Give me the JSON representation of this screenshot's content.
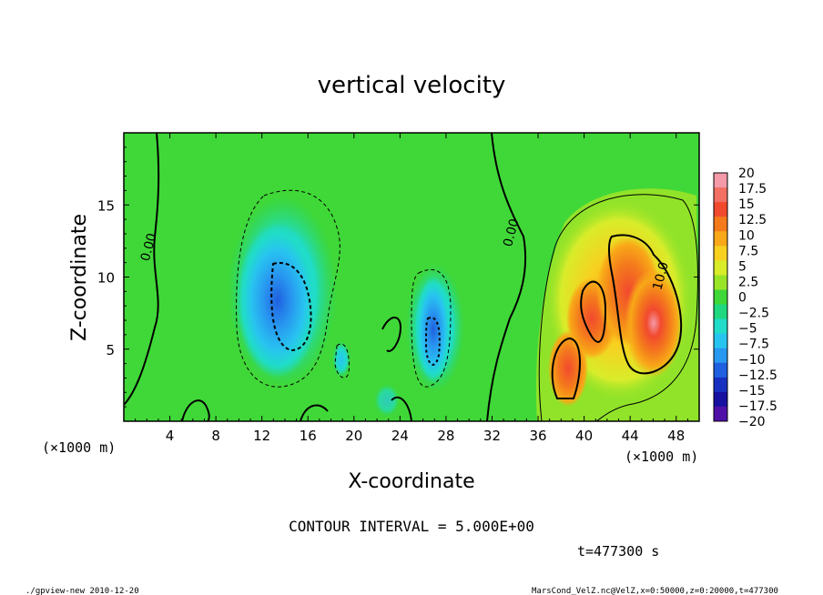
{
  "chart_data": {
    "type": "heatmap",
    "title": "vertical velocity",
    "xlabel": "X-coordinate",
    "ylabel": "Z-coordinate",
    "x_unit_left": "(×1000 m)",
    "x_unit_right": "(×1000 m)",
    "xlim": [
      0,
      50
    ],
    "ylim": [
      0,
      20
    ],
    "x_ticks": [
      4,
      8,
      12,
      16,
      20,
      24,
      28,
      32,
      36,
      40,
      44,
      48
    ],
    "y_ticks": [
      5,
      10,
      15
    ],
    "colorbar_levels": [
      "20",
      "17.5",
      "15",
      "12.5",
      "10",
      "7.5",
      "5",
      "2.5",
      "0",
      "-2.5",
      "-5",
      "-7.5",
      "-10",
      "-12.5",
      "-15",
      "-17.5",
      "-20"
    ],
    "colorbar_colors": [
      "#f49aa8",
      "#f26f63",
      "#f24a2e",
      "#f47a1c",
      "#f8a818",
      "#f8d020",
      "#d8ec2a",
      "#9ae428",
      "#40d838",
      "#20d880",
      "#20dcc8",
      "#28c4f0",
      "#2898f0",
      "#2060e0",
      "#1830c0",
      "#1810a0",
      "#5010a8"
    ],
    "contour_labels": [
      {
        "text": "0.00",
        "x": 2.5,
        "z": 12
      },
      {
        "text": "0.00",
        "x": 34,
        "z": 13
      },
      {
        "text": "10.0",
        "x": 47,
        "z": 10
      }
    ],
    "features": [
      {
        "kind": "updraft",
        "x": 45.8,
        "z": 6.8,
        "peak": 17.5
      },
      {
        "kind": "updraft",
        "x": 38.8,
        "z": 3.8,
        "peak": 12.5
      },
      {
        "kind": "updraft",
        "x": 41,
        "z": 7.5,
        "peak": 12.5
      },
      {
        "kind": "downdraft",
        "x": 13.5,
        "z": 8,
        "peak": -12.5
      },
      {
        "kind": "downdraft",
        "x": 26.7,
        "z": 6,
        "peak": -10
      }
    ],
    "contour_interval_text": "CONTOUR INTERVAL = 5.000E+00",
    "time_text": "t=477300 s",
    "footer_left": "./gpview-new  2010-12-20",
    "footer_right": "MarsCond_VelZ.nc@VelZ,x=0:50000,z=0:20000,t=477300"
  }
}
